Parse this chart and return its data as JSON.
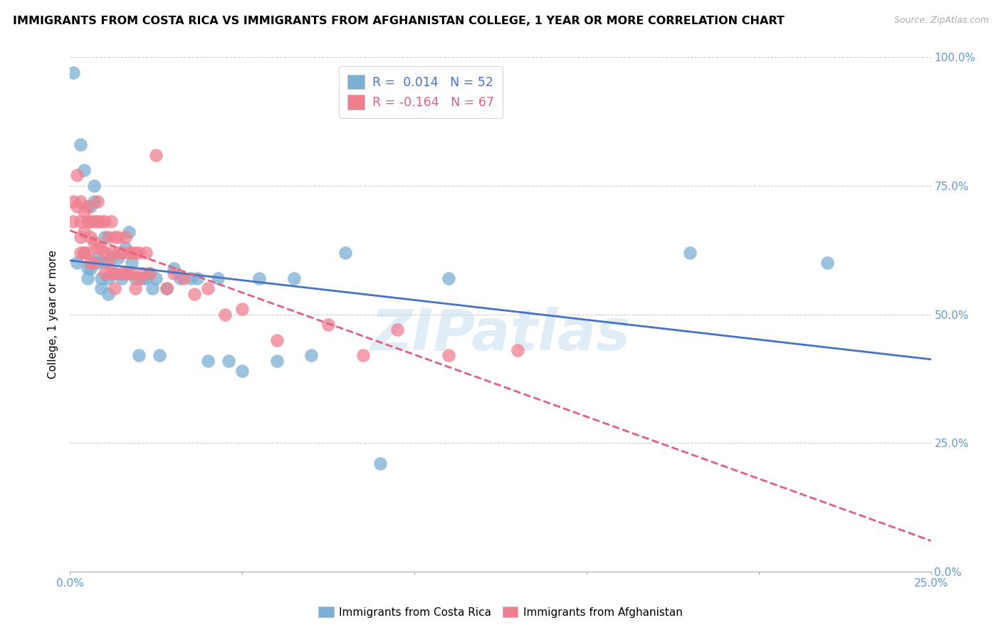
{
  "title": "IMMIGRANTS FROM COSTA RICA VS IMMIGRANTS FROM AFGHANISTAN COLLEGE, 1 YEAR OR MORE CORRELATION CHART",
  "source": "Source: ZipAtlas.com",
  "ylabel": "College, 1 year or more",
  "xlim": [
    0.0,
    0.25
  ],
  "ylim": [
    0.0,
    1.0
  ],
  "xticks": [
    0.0,
    0.05,
    0.1,
    0.15,
    0.2,
    0.25
  ],
  "yticks": [
    0.0,
    0.25,
    0.5,
    0.75,
    1.0
  ],
  "ytick_labels_right": [
    "0.0%",
    "25.0%",
    "50.0%",
    "75.0%",
    "100.0%"
  ],
  "xtick_labels": [
    "0.0%",
    "",
    "",
    "",
    "",
    "25.0%"
  ],
  "costa_rica_color": "#7bafd4",
  "afghanistan_color": "#f08090",
  "trend_costa_rica_color": "#4472c4",
  "trend_afghanistan_color": "#e06080",
  "watermark": "ZIPatlas",
  "R_cr": 0.014,
  "N_cr": 52,
  "R_af": -0.164,
  "N_af": 67,
  "costa_rica_x": [
    0.001,
    0.002,
    0.003,
    0.004,
    0.004,
    0.005,
    0.005,
    0.006,
    0.006,
    0.007,
    0.007,
    0.008,
    0.008,
    0.009,
    0.009,
    0.01,
    0.01,
    0.011,
    0.011,
    0.012,
    0.013,
    0.014,
    0.015,
    0.016,
    0.017,
    0.018,
    0.019,
    0.02,
    0.021,
    0.022,
    0.023,
    0.024,
    0.025,
    0.026,
    0.028,
    0.03,
    0.032,
    0.035,
    0.037,
    0.04,
    0.043,
    0.046,
    0.05,
    0.055,
    0.06,
    0.065,
    0.07,
    0.08,
    0.09,
    0.11,
    0.18,
    0.22
  ],
  "costa_rica_y": [
    0.97,
    0.6,
    0.83,
    0.78,
    0.62,
    0.59,
    0.57,
    0.71,
    0.59,
    0.75,
    0.72,
    0.61,
    0.6,
    0.57,
    0.55,
    0.65,
    0.6,
    0.57,
    0.54,
    0.61,
    0.58,
    0.61,
    0.57,
    0.63,
    0.66,
    0.6,
    0.57,
    0.42,
    0.57,
    0.57,
    0.58,
    0.55,
    0.57,
    0.42,
    0.55,
    0.59,
    0.57,
    0.57,
    0.57,
    0.41,
    0.57,
    0.41,
    0.39,
    0.57,
    0.41,
    0.57,
    0.42,
    0.62,
    0.21,
    0.57,
    0.62,
    0.6
  ],
  "afghanistan_x": [
    0.001,
    0.001,
    0.002,
    0.002,
    0.003,
    0.003,
    0.003,
    0.003,
    0.004,
    0.004,
    0.004,
    0.005,
    0.005,
    0.005,
    0.006,
    0.006,
    0.006,
    0.007,
    0.007,
    0.007,
    0.008,
    0.008,
    0.008,
    0.009,
    0.009,
    0.01,
    0.01,
    0.01,
    0.011,
    0.011,
    0.012,
    0.012,
    0.012,
    0.013,
    0.013,
    0.013,
    0.014,
    0.014,
    0.015,
    0.015,
    0.016,
    0.016,
    0.017,
    0.017,
    0.018,
    0.018,
    0.019,
    0.019,
    0.02,
    0.02,
    0.021,
    0.022,
    0.023,
    0.025,
    0.028,
    0.03,
    0.033,
    0.036,
    0.04,
    0.045,
    0.05,
    0.06,
    0.075,
    0.085,
    0.095,
    0.11,
    0.13
  ],
  "afghanistan_y": [
    0.72,
    0.68,
    0.77,
    0.71,
    0.72,
    0.68,
    0.65,
    0.62,
    0.7,
    0.66,
    0.62,
    0.71,
    0.68,
    0.62,
    0.68,
    0.65,
    0.6,
    0.68,
    0.64,
    0.6,
    0.72,
    0.68,
    0.63,
    0.68,
    0.63,
    0.68,
    0.62,
    0.58,
    0.65,
    0.6,
    0.68,
    0.62,
    0.58,
    0.65,
    0.58,
    0.55,
    0.65,
    0.62,
    0.62,
    0.58,
    0.65,
    0.58,
    0.62,
    0.58,
    0.62,
    0.58,
    0.62,
    0.55,
    0.62,
    0.57,
    0.58,
    0.62,
    0.58,
    0.81,
    0.55,
    0.58,
    0.57,
    0.54,
    0.55,
    0.5,
    0.51,
    0.45,
    0.48,
    0.42,
    0.47,
    0.42,
    0.43
  ]
}
